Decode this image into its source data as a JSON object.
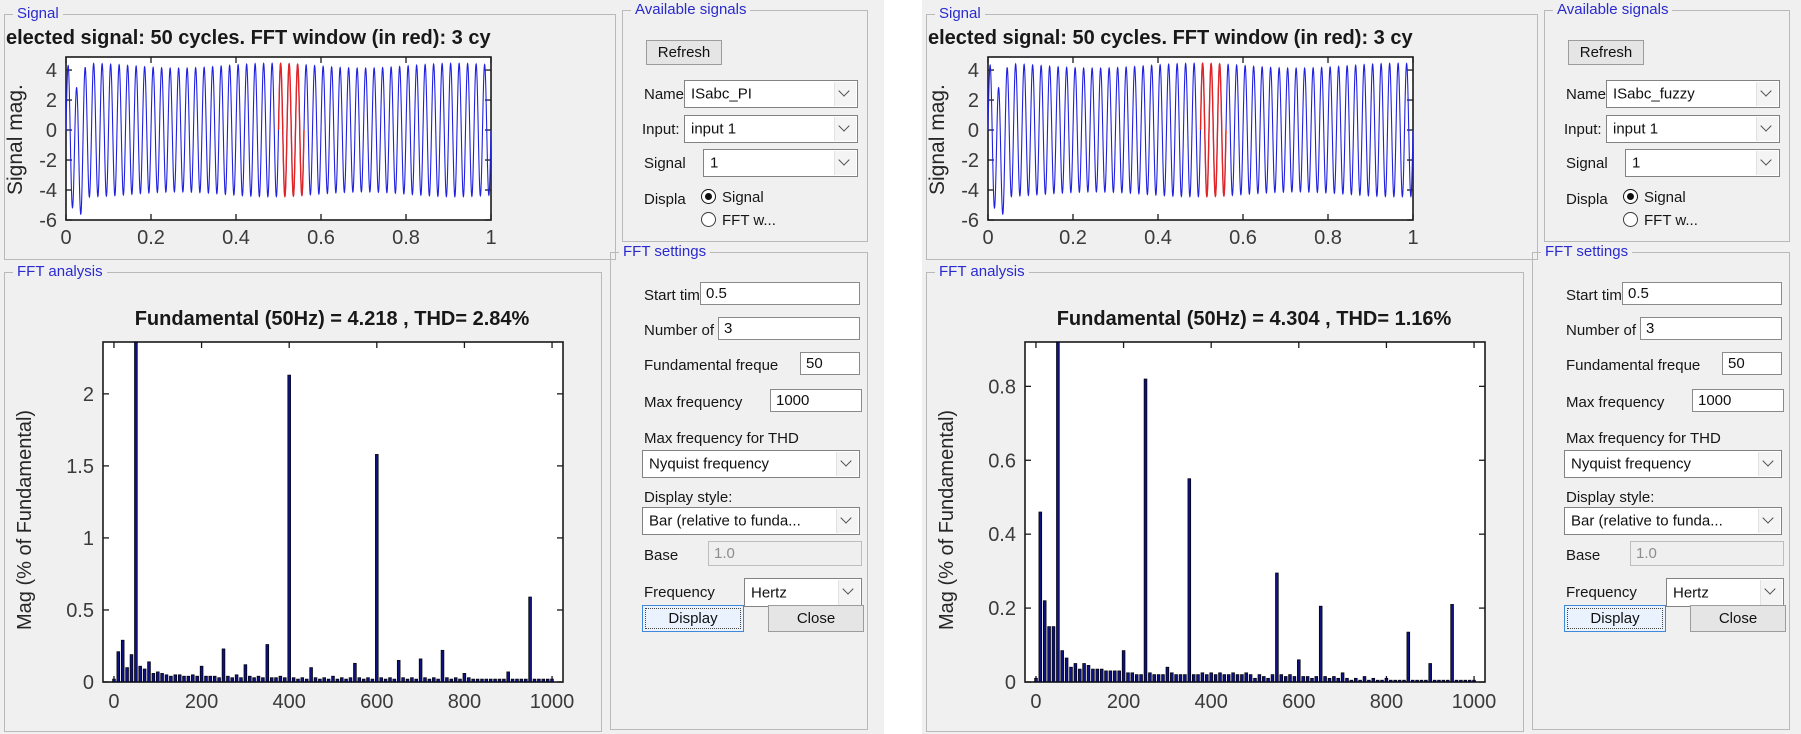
{
  "colors": {
    "panel_bg": "#f0f0f0",
    "group_title_blue": "#2a2ad0",
    "signal_line_blue": "#2020e0",
    "fft_window_red": "#e32424",
    "bar_navy": "#0e1280",
    "axis_dark": "#1a1a1a"
  },
  "windows": [
    {
      "signal_panel": {
        "title": "Signal"
      },
      "available_signals": {
        "title": "Available signals",
        "refresh": "Refresh",
        "name_label": "Name",
        "name_value": "ISabc_PI",
        "input_label": "Input:",
        "input_value": "input 1",
        "signal_label": "Signal",
        "signal_value": "1",
        "display_label": "Displa",
        "radio_signal_label": "Signal",
        "radio_fft_label": "FFT w...",
        "display_selected": "Signal"
      },
      "fft_panel": {
        "title": "FFT analysis"
      },
      "fft_settings": {
        "title": "FFT settings",
        "start_time_label": "Start time",
        "start_time_value": "0.5",
        "cycles_label": "Number of",
        "cycles_value": "3",
        "fundamental_label": "Fundamental freque",
        "fundamental_value": "50",
        "max_freq_label": "Max frequency",
        "max_freq_value": "1000",
        "max_freq_thd_label": "Max frequency for THD",
        "max_freq_thd_value": "Nyquist frequency",
        "display_style_label": "Display style:",
        "display_style_value": "Bar (relative to funda...",
        "base_label": "Base",
        "base_value": "1.0",
        "frequency_label": "Frequency",
        "frequency_value": "Hertz",
        "display_button": "Display",
        "close_button": "Close"
      }
    },
    {
      "signal_panel": {
        "title": "Signal"
      },
      "available_signals": {
        "title": "Available signals",
        "refresh": "Refresh",
        "name_label": "Name",
        "name_value": "ISabc_fuzzy",
        "input_label": "Input:",
        "input_value": "input 1",
        "signal_label": "Signal",
        "signal_value": "1",
        "display_label": "Displa",
        "radio_signal_label": "Signal",
        "radio_fft_label": "FFT w...",
        "display_selected": "Signal"
      },
      "fft_panel": {
        "title": "FFT analysis"
      },
      "fft_settings": {
        "title": "FFT settings",
        "start_time_label": "Start time",
        "start_time_value": "0.5",
        "cycles_label": "Number of",
        "cycles_value": "3",
        "fundamental_label": "Fundamental freque",
        "fundamental_value": "50",
        "max_freq_label": "Max frequency",
        "max_freq_value": "1000",
        "max_freq_thd_label": "Max frequency for THD",
        "max_freq_thd_value": "Nyquist frequency",
        "display_style_label": "Display style:",
        "display_style_value": "Bar (relative to funda...",
        "base_label": "Base",
        "base_value": "1.0",
        "frequency_label": "Frequency",
        "frequency_value": "Hertz",
        "display_button": "Display",
        "close_button": "Close"
      }
    }
  ],
  "chart_data": [
    {
      "type": "line",
      "window": "left",
      "title": "elected signal: 50 cycles. FFT window (in red): 3 cy",
      "ylabel": "Signal mag.",
      "xlim": [
        0,
        1
      ],
      "ylim": [
        -6,
        4.87
      ],
      "xticks": [
        "0",
        "0.2",
        "0.4",
        "0.6",
        "0.8",
        "1"
      ],
      "xtick_values": [
        0,
        0.2,
        0.4,
        0.6,
        0.8,
        1
      ],
      "yticks": [
        "4",
        "2",
        "0",
        "-2",
        "-4",
        "-6"
      ],
      "ytick_values": [
        4,
        2,
        0,
        -2,
        -4,
        -6
      ],
      "line_color": "#2020e0",
      "fft_window_color": "#e32424",
      "fft_window": [
        0.5,
        0.56
      ],
      "synth": {
        "frequency_hz": 50,
        "base_amplitude": 4.28,
        "am_depth": 0.16,
        "am_freq_hz": 2.3,
        "am_phase": 0.9,
        "transient_t": 0.027,
        "transient_depth": -1.65,
        "transient_width": 0.0095
      }
    },
    {
      "type": "line",
      "window": "right",
      "title": "elected signal: 50 cycles. FFT window (in red): 3 cy",
      "ylabel": "Signal mag.",
      "xlim": [
        0,
        1
      ],
      "ylim": [
        -6,
        4.87
      ],
      "xticks": [
        "0",
        "0.2",
        "0.4",
        "0.6",
        "0.8",
        "1"
      ],
      "xtick_values": [
        0,
        0.2,
        0.4,
        0.6,
        0.8,
        1
      ],
      "yticks": [
        "4",
        "2",
        "0",
        "-2",
        "-4",
        "-6"
      ],
      "ytick_values": [
        4,
        2,
        0,
        -2,
        -4,
        -6
      ],
      "line_color": "#2020e0",
      "fft_window_color": "#e32424",
      "fft_window": [
        0.5,
        0.56
      ],
      "synth": {
        "frequency_hz": 50,
        "base_amplitude": 4.28,
        "am_depth": 0.16,
        "am_freq_hz": 2.1,
        "am_phase": 1.4,
        "transient_t": 0.027,
        "transient_depth": -1.65,
        "transient_width": 0.0095
      }
    },
    {
      "type": "bar",
      "window": "left",
      "title": "Fundamental (50Hz) = 4.218 , THD= 2.84%",
      "ylabel": "Mag (% of Fundamental)",
      "fundamental_hz": 50,
      "fundamental_value": 4.218,
      "thd_percent": 2.84,
      "xlim": [
        -25,
        1025
      ],
      "ylim": [
        0,
        2.36
      ],
      "xticks": [
        "0",
        "200",
        "400",
        "600",
        "800",
        "1000"
      ],
      "xtick_values": [
        0,
        200,
        400,
        600,
        800,
        1000
      ],
      "yticks": [
        "0",
        "0.5",
        "1",
        "1.5",
        "2"
      ],
      "ytick_values": [
        0,
        0.5,
        1,
        1.5,
        2
      ],
      "bar_color": "#0e1280",
      "freq_step": 10,
      "fundamental_clipped": true,
      "values": [
        0.02,
        0.21,
        0.29,
        0.1,
        0.19,
        100,
        0.11,
        0.09,
        0.14,
        0.06,
        0.07,
        0.06,
        0.05,
        0.04,
        0.05,
        0.05,
        0.04,
        0.04,
        0.05,
        0.04,
        0.11,
        0.04,
        0.04,
        0.04,
        0.03,
        0.23,
        0.04,
        0.03,
        0.05,
        0.03,
        0.12,
        0.04,
        0.03,
        0.04,
        0.03,
        0.26,
        0.03,
        0.03,
        0.04,
        0.03,
        2.13,
        0.03,
        0.02,
        0.03,
        0.02,
        0.1,
        0.03,
        0.02,
        0.03,
        0.02,
        0.04,
        0.02,
        0.03,
        0.02,
        0.03,
        0.13,
        0.03,
        0.02,
        0.03,
        0.02,
        1.58,
        0.03,
        0.02,
        0.03,
        0.02,
        0.15,
        0.03,
        0.02,
        0.03,
        0.02,
        0.16,
        0.03,
        0.02,
        0.03,
        0.02,
        0.22,
        0.03,
        0.02,
        0.03,
        0.02,
        0.06,
        0.03,
        0.02,
        0.02,
        0.02,
        0.02,
        0.02,
        0.02,
        0.02,
        0.02,
        0.07,
        0.02,
        0.02,
        0.02,
        0.02,
        0.59,
        0.02,
        0.02,
        0.02,
        0.02,
        0.02
      ]
    },
    {
      "type": "bar",
      "window": "right",
      "title": "Fundamental (50Hz) = 4.304 , THD= 1.16%",
      "ylabel": "Mag (% of Fundamental)",
      "fundamental_hz": 50,
      "fundamental_value": 4.304,
      "thd_percent": 1.16,
      "xlim": [
        -25,
        1025
      ],
      "ylim": [
        0,
        0.92
      ],
      "xticks": [
        "0",
        "200",
        "400",
        "600",
        "800",
        "1000"
      ],
      "xtick_values": [
        0,
        200,
        400,
        600,
        800,
        1000
      ],
      "yticks": [
        "0",
        "0.2",
        "0.4",
        "0.6",
        "0.8"
      ],
      "ytick_values": [
        0,
        0.2,
        0.4,
        0.6,
        0.8
      ],
      "bar_color": "#0e1280",
      "freq_step": 10,
      "fundamental_clipped": true,
      "values": [
        0.01,
        0.46,
        0.22,
        0.15,
        0.15,
        100,
        0.085,
        0.065,
        0.04,
        0.05,
        0.035,
        0.05,
        0.045,
        0.035,
        0.035,
        0.035,
        0.03,
        0.03,
        0.03,
        0.03,
        0.085,
        0.025,
        0.025,
        0.02,
        0.02,
        0.82,
        0.025,
        0.02,
        0.02,
        0.02,
        0.04,
        0.025,
        0.02,
        0.02,
        0.02,
        0.55,
        0.02,
        0.02,
        0.025,
        0.02,
        0.025,
        0.02,
        0.025,
        0.02,
        0.02,
        0.025,
        0.02,
        0.02,
        0.025,
        0.02,
        0.01,
        0.02,
        0.015,
        0.01,
        0.02,
        0.295,
        0.02,
        0.015,
        0.02,
        0.015,
        0.06,
        0.015,
        0.015,
        0.01,
        0.015,
        0.205,
        0.015,
        0.01,
        0.015,
        0.01,
        0.025,
        0.01,
        0.005,
        0.01,
        0.005,
        0.015,
        0.005,
        0.01,
        0.005,
        0.005,
        0.01,
        0.005,
        0.005,
        0.005,
        0.005,
        0.135,
        0.005,
        0.005,
        0.005,
        0.005,
        0.05,
        0.005,
        0.005,
        0.005,
        0.005,
        0.21,
        0.005,
        0.005,
        0.005,
        0.005,
        0.005
      ]
    }
  ]
}
